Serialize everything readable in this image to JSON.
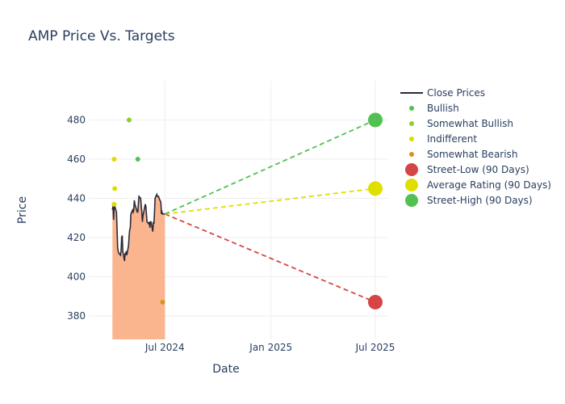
{
  "chart_data": {
    "type": "line",
    "title": "AMP Price Vs. Targets",
    "xlabel": "Date",
    "ylabel": "Price",
    "xlim": [
      "2024-02-20",
      "2025-07-22"
    ],
    "ylim": [
      368,
      500
    ],
    "x_ticks": [
      {
        "date": "2024-07-01",
        "label": "Jul 2024"
      },
      {
        "date": "2025-01-01",
        "label": "Jan 2025"
      },
      {
        "date": "2025-07-01",
        "label": "Jul 2025"
      }
    ],
    "y_ticks": [
      380,
      400,
      420,
      440,
      460,
      480
    ],
    "grid": true,
    "legend_position": "top-right",
    "colors": {
      "close": "#2a2a3a",
      "area": "#f9a87a",
      "bullish": "#52c152",
      "somewhat_bullish": "#8ad12c",
      "indifferent": "#e0dc00",
      "somewhat_bearish": "#d8921e",
      "street_low": "#d64545",
      "average": "#e0e000",
      "street_high": "#52c152"
    },
    "close_prices": {
      "name": "Close Prices",
      "dates": [
        "2024-04-01",
        "2024-04-02",
        "2024-04-03",
        "2024-04-04",
        "2024-04-05",
        "2024-04-08",
        "2024-04-09",
        "2024-04-10",
        "2024-04-11",
        "2024-04-12",
        "2024-04-15",
        "2024-04-16",
        "2024-04-17",
        "2024-04-18",
        "2024-04-19",
        "2024-04-22",
        "2024-04-23",
        "2024-04-24",
        "2024-04-25",
        "2024-04-26",
        "2024-04-29",
        "2024-04-30",
        "2024-05-01",
        "2024-05-02",
        "2024-05-03",
        "2024-05-06",
        "2024-05-07",
        "2024-05-08",
        "2024-05-09",
        "2024-05-10",
        "2024-05-13",
        "2024-05-14",
        "2024-05-15",
        "2024-05-16",
        "2024-05-17",
        "2024-05-20",
        "2024-05-21",
        "2024-05-22",
        "2024-05-23",
        "2024-05-24",
        "2024-05-28",
        "2024-05-29",
        "2024-05-30",
        "2024-05-31",
        "2024-06-03",
        "2024-06-04",
        "2024-06-05",
        "2024-06-06",
        "2024-06-07",
        "2024-06-10",
        "2024-06-11",
        "2024-06-12",
        "2024-06-13",
        "2024-06-14",
        "2024-06-17",
        "2024-06-18",
        "2024-06-20",
        "2024-06-21",
        "2024-06-24",
        "2024-06-25",
        "2024-06-26",
        "2024-06-27",
        "2024-06-28",
        "2024-07-01"
      ],
      "values": [
        434,
        436,
        429,
        435,
        436,
        433,
        425,
        415,
        413,
        412,
        411,
        413,
        420,
        421,
        413,
        408,
        412,
        411,
        413,
        411,
        416,
        421,
        424,
        425,
        432,
        434,
        433,
        434,
        439,
        437,
        434,
        433,
        433,
        437,
        441,
        440,
        436,
        433,
        428,
        431,
        437,
        436,
        432,
        428,
        427,
        428,
        425,
        428,
        428,
        423,
        428,
        427,
        433,
        440,
        442,
        441,
        441,
        440,
        438,
        432,
        433,
        432,
        432,
        432
      ]
    },
    "analyst_ratings": [
      {
        "name": "Bullish",
        "points": [
          {
            "x": "2024-05-15",
            "y": 460
          }
        ]
      },
      {
        "name": "Somewhat Bullish",
        "points": [
          {
            "x": "2024-04-30",
            "y": 480
          }
        ]
      },
      {
        "name": "Indifferent",
        "points": [
          {
            "x": "2024-04-04",
            "y": 460
          },
          {
            "x": "2024-04-05",
            "y": 445
          },
          {
            "x": "2024-04-04",
            "y": 437
          }
        ]
      },
      {
        "name": "Somewhat Bearish",
        "points": [
          {
            "x": "2024-06-27",
            "y": 387
          }
        ]
      }
    ],
    "targets": [
      {
        "name": "Street-Low (90 Days)",
        "start": {
          "x": "2024-07-01",
          "y": 432
        },
        "end": {
          "x": "2025-07-01",
          "y": 387
        }
      },
      {
        "name": "Average Rating (90 Days)",
        "start": {
          "x": "2024-07-01",
          "y": 432
        },
        "end": {
          "x": "2025-07-01",
          "y": 445
        }
      },
      {
        "name": "Street-High (90 Days)",
        "start": {
          "x": "2024-07-01",
          "y": 432
        },
        "end": {
          "x": "2025-07-01",
          "y": 480
        }
      }
    ],
    "legend": [
      "Close Prices",
      "Bullish",
      "Somewhat Bullish",
      "Indifferent",
      "Somewhat Bearish",
      "Street-Low (90 Days)",
      "Average Rating (90 Days)",
      "Street-High (90 Days)"
    ]
  }
}
